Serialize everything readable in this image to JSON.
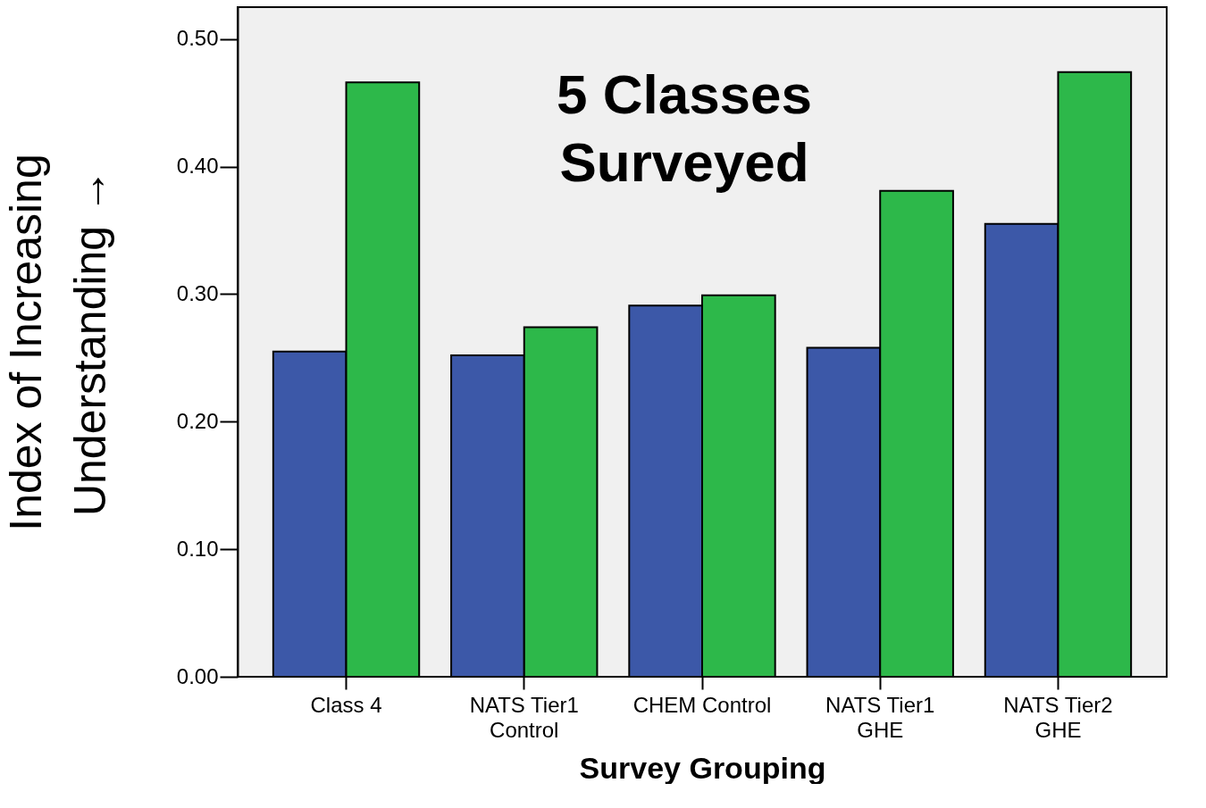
{
  "chart_data": {
    "type": "bar",
    "title": "5 Classes\nSurveyed",
    "xlabel": "Survey Grouping",
    "ylabel": "Index of Increasing\nUnderstanding →",
    "categories": [
      "Class 4",
      "NATS Tier1\nControl",
      "CHEM Control",
      "NATS Tier1\nGHE",
      "NATS Tier2\nGHE"
    ],
    "series": [
      {
        "color": "#3c58a8",
        "values": [
          0.255,
          0.252,
          0.291,
          0.258,
          0.355
        ]
      },
      {
        "color": "#2db84a",
        "values": [
          0.466,
          0.274,
          0.299,
          0.381,
          0.474
        ]
      }
    ],
    "ylim": [
      0,
      0.525
    ],
    "yticks": [
      {
        "value": 0,
        "label": "0.00"
      },
      {
        "value": 0.1,
        "label": "0.10"
      },
      {
        "value": 0.2,
        "label": "0.20"
      },
      {
        "value": 0.3,
        "label": "0.30"
      },
      {
        "value": 0.4,
        "label": "0.40"
      },
      {
        "value": 0.5,
        "label": "0.50"
      }
    ],
    "grid": false,
    "legend": false
  }
}
